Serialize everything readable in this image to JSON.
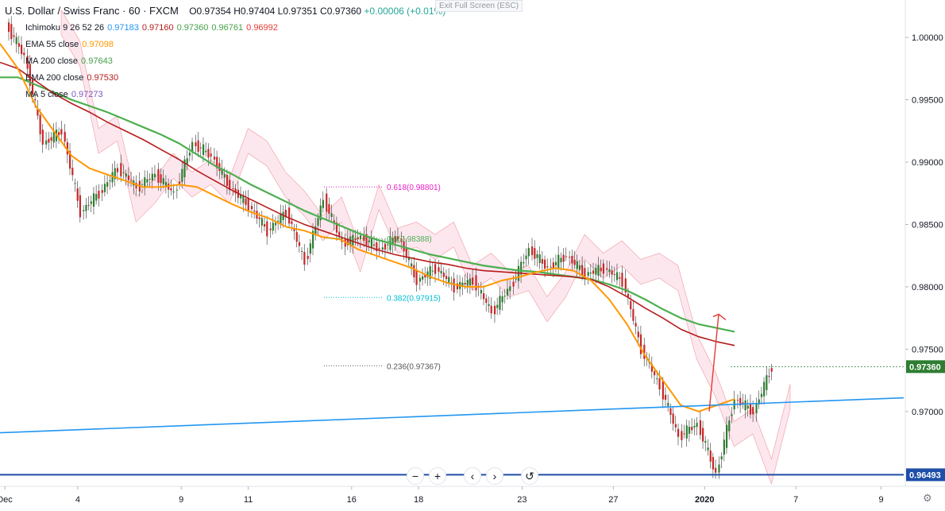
{
  "header": {
    "symbol": "U.S. Dollar / Swiss Franc · 60 · FXCM",
    "ohlc": "O0.97354  H0.97404  L0.97351  C0.97360",
    "change": "+0.00006 (+0.01%)",
    "exit_fullscreen": "Exit Full Screen (ESC)"
  },
  "indicators": [
    {
      "name": "Ichimoku 9 26 52 26",
      "values": [
        {
          "v": "0.97183",
          "c": "#2196f3"
        },
        {
          "v": "0.97160",
          "c": "#b71c1c"
        },
        {
          "v": "0.97360",
          "c": "#43a047"
        },
        {
          "v": "0.96761",
          "c": "#43a047"
        },
        {
          "v": "0.96992",
          "c": "#e53935"
        }
      ]
    },
    {
      "name": "EMA 55 close",
      "values": [
        {
          "v": "0.97098",
          "c": "#ff9800"
        }
      ]
    },
    {
      "name": "MA 200 close",
      "values": [
        {
          "v": "0.97643",
          "c": "#43a047"
        }
      ]
    },
    {
      "name": "EMA 200 close",
      "values": [
        {
          "v": "0.97530",
          "c": "#b71c1c"
        }
      ]
    },
    {
      "name": "MA 5 close",
      "values": [
        {
          "v": "0.97273",
          "c": "#7e57c2"
        }
      ]
    }
  ],
  "chart_data": {
    "type": "candlestick",
    "y_range": [
      0.964,
      1.003
    ],
    "price_ticks": [
      "1.00000",
      "0.99500",
      "0.99000",
      "0.98500",
      "0.98000",
      "0.97500",
      "0.97000"
    ],
    "x_ticks": [
      {
        "label": "Dec",
        "bold": false
      },
      {
        "label": "4",
        "bold": false
      },
      {
        "label": "9",
        "bold": false
      },
      {
        "label": "11",
        "bold": false
      },
      {
        "label": "16",
        "bold": false
      },
      {
        "label": "18",
        "bold": false
      },
      {
        "label": "23",
        "bold": false
      },
      {
        "label": "27",
        "bold": false
      },
      {
        "label": "2020",
        "bold": true
      },
      {
        "label": "7",
        "bold": false
      },
      {
        "label": "9",
        "bold": false
      }
    ],
    "current_price": {
      "label": "0.97360",
      "value": 0.9736,
      "color": "#2e7d32"
    },
    "support_line": {
      "label": "0.96493",
      "value": 0.96493,
      "color": "#1e4ea8"
    },
    "trendline": {
      "start": 0.9683,
      "end": 0.9711,
      "color": "#2196f3"
    },
    "fib_levels": [
      {
        "label": "0.618(0.98801)",
        "value": 0.98801,
        "color": "#e91ec9"
      },
      {
        "label": "0.5(0.98388)",
        "value": 0.98388,
        "color": "#4caf50"
      },
      {
        "label": "0.382(0.97915)",
        "value": 0.97915,
        "color": "#00bcd4"
      },
      {
        "label": "0.236(0.97367)",
        "value": 0.97367,
        "color": "#555555"
      }
    ],
    "price_path": [
      1.001,
      0.9985,
      0.9915,
      0.9925,
      0.986,
      0.9875,
      0.9895,
      0.988,
      0.989,
      0.9875,
      0.9915,
      0.9905,
      0.988,
      0.9865,
      0.9845,
      0.986,
      0.982,
      0.987,
      0.9835,
      0.984,
      0.983,
      0.984,
      0.9805,
      0.9815,
      0.98,
      0.9805,
      0.978,
      0.98,
      0.983,
      0.9815,
      0.9825,
      0.981,
      0.9815,
      0.9805,
      0.975,
      0.972,
      0.968,
      0.969,
      0.965,
      0.971,
      0.97,
      0.9736
    ],
    "ema55": [
      0.9995,
      0.9975,
      0.9945,
      0.9925,
      0.9905,
      0.9895,
      0.989,
      0.9885,
      0.988,
      0.988,
      0.9882,
      0.988,
      0.9873,
      0.9866,
      0.986,
      0.9855,
      0.9848,
      0.9845,
      0.984,
      0.9838,
      0.983,
      0.9825,
      0.982,
      0.9815,
      0.9808,
      0.9803,
      0.98,
      0.98,
      0.9805,
      0.9808,
      0.9812,
      0.9815,
      0.9813,
      0.9805,
      0.979,
      0.977,
      0.9745,
      0.9725,
      0.9705,
      0.97,
      0.9705,
      0.971
    ],
    "ema200": [
      0.998,
      0.9975,
      0.9965,
      0.9955,
      0.9947,
      0.994,
      0.9932,
      0.9925,
      0.9918,
      0.991,
      0.9902,
      0.9893,
      0.9885,
      0.9877,
      0.987,
      0.9863,
      0.9856,
      0.985,
      0.9845,
      0.984,
      0.9835,
      0.983,
      0.9826,
      0.9823,
      0.982,
      0.9818,
      0.9815,
      0.9813,
      0.9812,
      0.9811,
      0.981,
      0.9809,
      0.9808,
      0.9806,
      0.98,
      0.9792,
      0.9783,
      0.9775,
      0.9766,
      0.976,
      0.9756,
      0.9753
    ],
    "ma200": [
      0.9968,
      0.9968,
      0.9962,
      0.9956,
      0.995,
      0.9945,
      0.994,
      0.9934,
      0.9928,
      0.9922,
      0.9915,
      0.9906,
      0.9897,
      0.989,
      0.9882,
      0.9875,
      0.9868,
      0.9861,
      0.9855,
      0.9849,
      0.9843,
      0.9838,
      0.9834,
      0.983,
      0.9826,
      0.9823,
      0.982,
      0.9817,
      0.9815,
      0.9813,
      0.9812,
      0.981,
      0.9808,
      0.9806,
      0.9802,
      0.9797,
      0.979,
      0.9782,
      0.9775,
      0.977,
      0.9767,
      0.9764
    ],
    "arrow": {
      "from": [
        0.965,
        0.97
      ],
      "to": [
        0.97,
        0.9778
      ],
      "color": "#e53935"
    }
  }
}
